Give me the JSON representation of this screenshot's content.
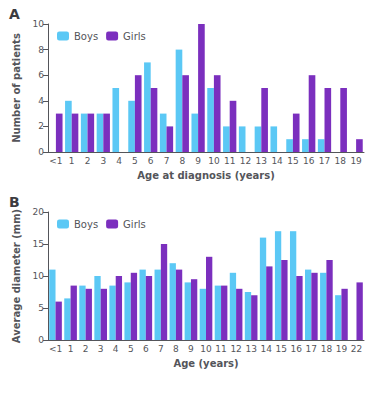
{
  "chart_data": [
    {
      "type": "bar",
      "title": "A",
      "x_label": "Age at diagnosis (years)",
      "y_label": "Number of patients",
      "categories": [
        "<1",
        "1",
        "2",
        "3",
        "4",
        "5",
        "6",
        "7",
        "8",
        "9",
        "10",
        "11",
        "12",
        "13",
        "14",
        "15",
        "16",
        "17",
        "18",
        "19"
      ],
      "series": [
        {
          "name": "Boys",
          "color": "#5bc8f5",
          "values": [
            0,
            4,
            3,
            3,
            5,
            4,
            7,
            3,
            8,
            3,
            5,
            2,
            2,
            2,
            2,
            1,
            1,
            1,
            0,
            0
          ]
        },
        {
          "name": "Girls",
          "color": "#7b2fbe",
          "values": [
            3,
            3,
            3,
            3,
            0,
            6,
            5,
            2,
            6,
            10,
            6,
            4,
            0,
            5,
            0,
            3,
            6,
            5,
            5,
            1
          ]
        }
      ],
      "ylim": [
        0,
        10
      ],
      "yticks": [
        0,
        2,
        4,
        6,
        8,
        10
      ],
      "grid": false,
      "legend": "upper left"
    },
    {
      "type": "bar",
      "title": "B",
      "x_label": "Age (years)",
      "y_label": "Average diameter (mm)",
      "categories": [
        "<1",
        "1",
        "2",
        "3",
        "4",
        "5",
        "6",
        "7",
        "8",
        "9",
        "10",
        "11",
        "12",
        "13",
        "14",
        "15",
        "16",
        "17",
        "18",
        "19",
        "22"
      ],
      "series": [
        {
          "name": "Boys",
          "color": "#5bc8f5",
          "values": [
            11,
            6.5,
            8.5,
            10,
            8.5,
            9,
            11,
            11,
            12,
            9,
            8,
            8.5,
            10.5,
            7.5,
            16,
            17,
            17,
            11,
            10.5,
            7,
            0
          ]
        },
        {
          "name": "Girls",
          "color": "#7b2fbe",
          "values": [
            6,
            8.5,
            8,
            8,
            10,
            10.5,
            10,
            15,
            11,
            9.5,
            13,
            8.5,
            8,
            7,
            11.5,
            12.5,
            10,
            10.5,
            12.5,
            8,
            9
          ]
        }
      ],
      "ylim": [
        0,
        20
      ],
      "yticks": [
        0,
        5,
        10,
        15,
        20
      ],
      "grid": false,
      "legend": "upper left"
    }
  ]
}
